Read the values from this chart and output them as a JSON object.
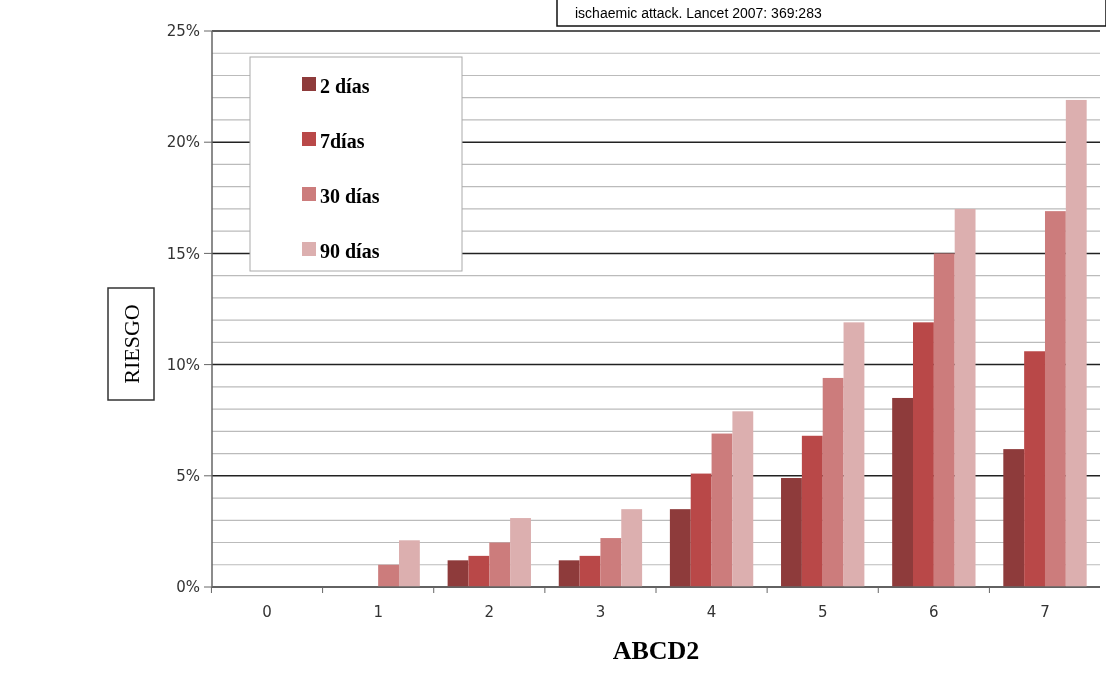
{
  "chart_data": {
    "type": "bar",
    "xlabel": "ABCD2",
    "ylabel": "RIESGO",
    "annotations": [
      "ischaemic attack. Lancet 2007: 369:283"
    ],
    "categories": [
      "0",
      "1",
      "2",
      "3",
      "4",
      "5",
      "6",
      "7"
    ],
    "series": [
      {
        "name": "2 días",
        "color": "#8e3b3b",
        "values": [
          0,
          0,
          1.2,
          1.2,
          3.5,
          4.9,
          8.5,
          6.2
        ]
      },
      {
        "name": "7días",
        "color": "#b94848",
        "values": [
          0,
          0,
          1.4,
          1.4,
          5.1,
          6.8,
          11.9,
          10.6
        ]
      },
      {
        "name": "30 días",
        "color": "#cc7c7c",
        "values": [
          0,
          1.0,
          2.0,
          2.2,
          6.9,
          9.4,
          15.0,
          16.9
        ]
      },
      {
        "name": "90 días",
        "color": "#dcafaf",
        "values": [
          0,
          2.1,
          3.1,
          3.5,
          7.9,
          11.9,
          17.0,
          21.9
        ]
      }
    ],
    "ylim": [
      0,
      25
    ],
    "yticks": [
      {
        "value": 0,
        "label": "0%"
      },
      {
        "value": 1,
        "label": null
      },
      {
        "value": 2,
        "label": null
      },
      {
        "value": 3,
        "label": null
      },
      {
        "value": 4,
        "label": null
      },
      {
        "value": 5,
        "label": "5%"
      },
      {
        "value": 6,
        "label": null
      },
      {
        "value": 7,
        "label": null
      },
      {
        "value": 8,
        "label": null
      },
      {
        "value": 9,
        "label": null
      },
      {
        "value": 10,
        "label": "10%"
      },
      {
        "value": 11,
        "label": null
      },
      {
        "value": 12,
        "label": null
      },
      {
        "value": 13,
        "label": null
      },
      {
        "value": 14,
        "label": null
      },
      {
        "value": 15,
        "label": "15%"
      },
      {
        "value": 16,
        "label": null
      },
      {
        "value": 17,
        "label": null
      },
      {
        "value": 18,
        "label": null
      },
      {
        "value": 19,
        "label": null
      },
      {
        "value": 20,
        "label": "20%"
      },
      {
        "value": 21,
        "label": null
      },
      {
        "value": 22,
        "label": null
      },
      {
        "value": 23,
        "label": null
      },
      {
        "value": 24,
        "label": null
      },
      {
        "value": 25,
        "label": "25%"
      }
    ],
    "grid": "y",
    "legend": "top left"
  }
}
